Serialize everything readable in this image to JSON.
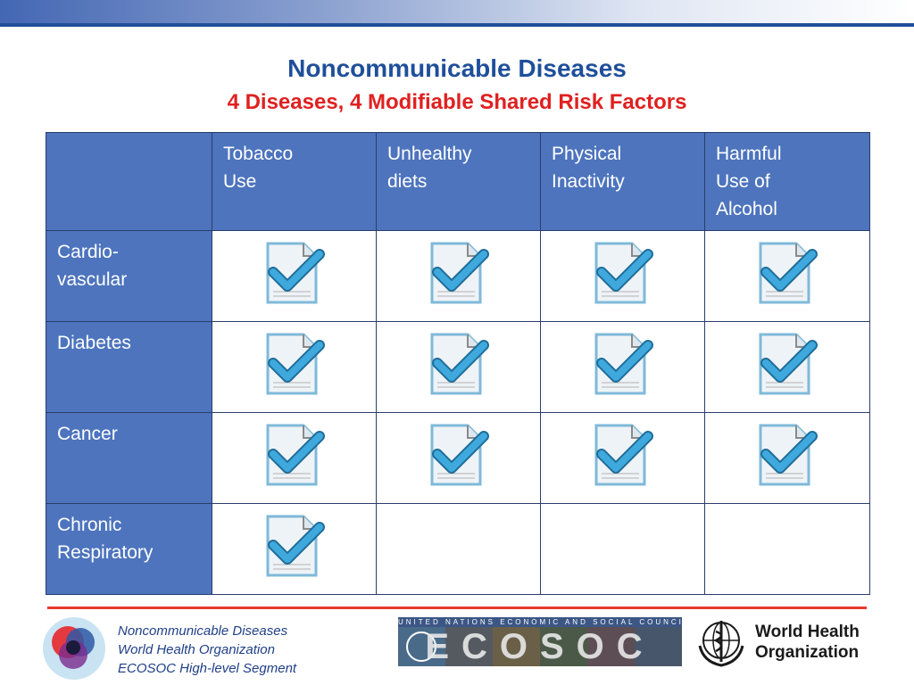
{
  "header": {
    "title": "Noncommunicable Diseases",
    "subtitle": "4 Diseases, 4 Modifiable Shared Risk Factors"
  },
  "table": {
    "columns": [
      {
        "line1": "Tobacco",
        "line2": "Use",
        "line3": ""
      },
      {
        "line1": "Unhealthy",
        "line2": "diets",
        "line3": ""
      },
      {
        "line1": "Physical",
        "line2": "Inactivity",
        "line3": ""
      },
      {
        "line1": "Harmful",
        "line2": "Use of",
        "line3": "Alcohol"
      }
    ],
    "rows": [
      {
        "line1": "Cardio-",
        "line2": "vascular",
        "checks": [
          true,
          true,
          true,
          true
        ]
      },
      {
        "line1": "Diabetes",
        "line2": "",
        "checks": [
          true,
          true,
          true,
          true
        ]
      },
      {
        "line1": "Cancer",
        "line2": "",
        "checks": [
          true,
          true,
          true,
          true
        ]
      },
      {
        "line1": "Chronic",
        "line2": "Respiratory",
        "checks": [
          true,
          false,
          false,
          false
        ]
      }
    ]
  },
  "footer": {
    "lines": [
      "Noncommunicable Diseases",
      "World Health Organization",
      "ECOSOC High-level Segment"
    ],
    "ecosoc_top": "UNITED NATIONS ECONOMIC AND SOCIAL COUNCIL",
    "ecosoc_word": "ECOSOC",
    "who_line1": "World Health",
    "who_line2": "Organization"
  },
  "colors": {
    "title": "#1f4f9a",
    "subtitle": "#e02020",
    "header_cell": "#4d74bd",
    "check": "#3fa9de",
    "footer_rule": "#e83a2c"
  },
  "icons": {
    "check": "document-checkmark-icon",
    "ncd_logo": "ncd-logo",
    "who_logo": "who-emblem-icon"
  }
}
